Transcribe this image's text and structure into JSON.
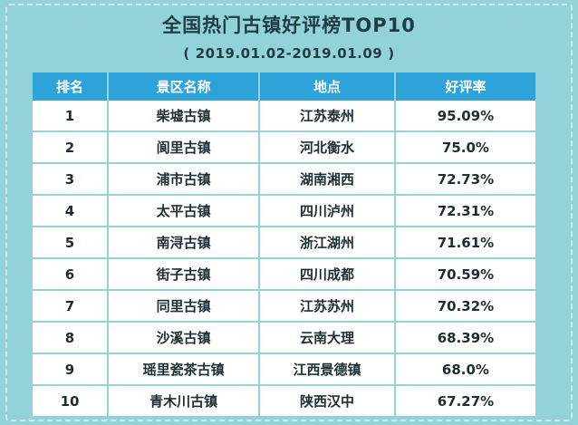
{
  "title": "全国热门古镇好评榜TOP10",
  "subtitle": {
    "open": "(",
    "range": "2019.01.02-2019.01.09",
    "close": ")"
  },
  "chart_data": {
    "type": "table",
    "columns": [
      "排名",
      "景区名称",
      "地点",
      "好评率"
    ],
    "rows": [
      [
        "1",
        "柴墟古镇",
        "江苏泰州",
        "95.09%"
      ],
      [
        "2",
        "阆里古镇",
        "河北衡水",
        "75.0%"
      ],
      [
        "3",
        "浦市古镇",
        "湖南湘西",
        "72.73%"
      ],
      [
        "4",
        "太平古镇",
        "四川泸州",
        "72.31%"
      ],
      [
        "5",
        "南浔古镇",
        "浙江湖州",
        "71.61%"
      ],
      [
        "6",
        "街子古镇",
        "四川成都",
        "70.59%"
      ],
      [
        "7",
        "同里古镇",
        "江苏苏州",
        "70.32%"
      ],
      [
        "8",
        "沙溪古镇",
        "云南大理",
        "68.39%"
      ],
      [
        "9",
        "瑶里瓷茶古镇",
        "江西景德镇",
        "68.0%"
      ],
      [
        "10",
        "青木川古镇",
        "陕西汉中",
        "67.27%"
      ]
    ]
  },
  "colors": {
    "background": "#93d2d8",
    "header": "#2ea3d9",
    "row": "#ffffff",
    "text": "#1c2e33"
  }
}
